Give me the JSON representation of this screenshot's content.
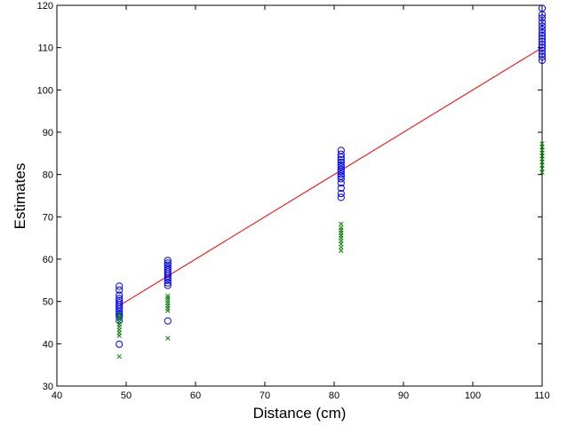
{
  "chart_data": {
    "type": "scatter",
    "title": "",
    "xlabel": "Distance (cm)",
    "ylabel": "Estimates",
    "xlim": [
      40,
      110
    ],
    "ylim": [
      30,
      120
    ],
    "xticks": [
      "40",
      "50",
      "60",
      "70",
      "80",
      "90",
      "100",
      "110"
    ],
    "yticks": [
      "30",
      "40",
      "50",
      "60",
      "70",
      "80",
      "90",
      "100",
      "110",
      "120"
    ],
    "grid": false,
    "legend": "none",
    "series": [
      {
        "marker": "circle",
        "color": "#0000ff",
        "points": [
          [
            49,
            39.9
          ],
          [
            49,
            45.5
          ],
          [
            49,
            46.5
          ],
          [
            49,
            47.0
          ],
          [
            49,
            47.6
          ],
          [
            49,
            48.2
          ],
          [
            49,
            48.7
          ],
          [
            49,
            49.2
          ],
          [
            49,
            49.7
          ],
          [
            49,
            50.2
          ],
          [
            49,
            50.7
          ],
          [
            49,
            51.5
          ],
          [
            49,
            52.7
          ],
          [
            49,
            53.6
          ],
          [
            56,
            45.4
          ],
          [
            56,
            53.8
          ],
          [
            56,
            54.4
          ],
          [
            56,
            55.0
          ],
          [
            56,
            55.5
          ],
          [
            56,
            56.0
          ],
          [
            56,
            56.5
          ],
          [
            56,
            57.0
          ],
          [
            56,
            57.5
          ],
          [
            56,
            58.0
          ],
          [
            56,
            58.6
          ],
          [
            56,
            59.1
          ],
          [
            56,
            59.7
          ],
          [
            81,
            74.6
          ],
          [
            81,
            75.5
          ],
          [
            81,
            76.8
          ],
          [
            81,
            78.0
          ],
          [
            81,
            79.0
          ],
          [
            81,
            79.6
          ],
          [
            81,
            80.1
          ],
          [
            81,
            80.7
          ],
          [
            81,
            81.2
          ],
          [
            81,
            81.8
          ],
          [
            81,
            82.3
          ],
          [
            81,
            82.9
          ],
          [
            81,
            83.5
          ],
          [
            81,
            84.1
          ],
          [
            81,
            84.8
          ],
          [
            81,
            85.7
          ],
          [
            110,
            107.0
          ],
          [
            110,
            107.8
          ],
          [
            110,
            108.5
          ],
          [
            110,
            109.3
          ],
          [
            110,
            110.0
          ],
          [
            110,
            110.7
          ],
          [
            110,
            111.4
          ],
          [
            110,
            112.1
          ],
          [
            110,
            112.8
          ],
          [
            110,
            113.5
          ],
          [
            110,
            114.3
          ],
          [
            110,
            115.1
          ],
          [
            110,
            116.0
          ],
          [
            110,
            117.0
          ],
          [
            110,
            117.8
          ],
          [
            110,
            119.3
          ]
        ]
      },
      {
        "marker": "x",
        "color": "#008000",
        "points": [
          [
            49,
            37.0
          ],
          [
            49,
            41.9
          ],
          [
            49,
            42.6
          ],
          [
            49,
            43.3
          ],
          [
            49,
            44.0
          ],
          [
            49,
            44.6
          ],
          [
            49,
            45.2
          ],
          [
            49,
            45.8
          ],
          [
            49,
            46.4
          ],
          [
            49,
            47.0
          ],
          [
            56,
            41.3
          ],
          [
            56,
            47.8
          ],
          [
            56,
            48.4
          ],
          [
            56,
            49.0
          ],
          [
            56,
            49.6
          ],
          [
            56,
            50.2
          ],
          [
            56,
            50.8
          ],
          [
            56,
            51.3
          ],
          [
            81,
            62.0
          ],
          [
            81,
            62.8
          ],
          [
            81,
            63.6
          ],
          [
            81,
            64.3
          ],
          [
            81,
            65.0
          ],
          [
            81,
            65.6
          ],
          [
            81,
            66.2
          ],
          [
            81,
            66.8
          ],
          [
            81,
            67.4
          ],
          [
            81,
            68.3
          ],
          [
            110,
            80.5
          ],
          [
            110,
            81.4
          ],
          [
            110,
            82.2
          ],
          [
            110,
            83.0
          ],
          [
            110,
            83.7
          ],
          [
            110,
            84.4
          ],
          [
            110,
            85.1
          ],
          [
            110,
            85.8
          ],
          [
            110,
            86.5
          ],
          [
            110,
            87.3
          ]
        ]
      },
      {
        "marker": "line",
        "color": "#ff0000",
        "points": [
          [
            49,
            49
          ],
          [
            110,
            110
          ]
        ]
      }
    ]
  }
}
